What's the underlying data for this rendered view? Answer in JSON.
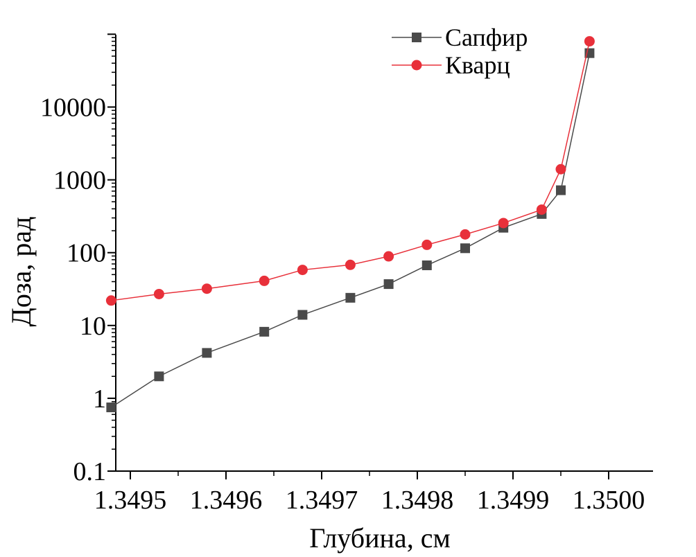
{
  "chart_data": {
    "type": "line",
    "xlabel": "Глубина, см",
    "ylabel": "Доза, рад",
    "yscale": "log",
    "xlim": [
      1.34948,
      1.35003
    ],
    "ylim": [
      0.1,
      100000
    ],
    "x_ticks": [
      "1.3495",
      "1.3496",
      "1.3497",
      "1.3498",
      "1.3499",
      "1.3500"
    ],
    "y_ticks": [
      "0.1",
      "1",
      "10",
      "100",
      "1000",
      "10000"
    ],
    "legend_position": "top-right",
    "series": [
      {
        "name": "Сапфир",
        "color": "#4a4a4a",
        "marker": "square",
        "points": [
          [
            1.34948,
            0.75
          ],
          [
            1.34953,
            2
          ],
          [
            1.34958,
            4.2
          ],
          [
            1.34964,
            8.2
          ],
          [
            1.34968,
            14
          ],
          [
            1.34973,
            24
          ],
          [
            1.34977,
            37
          ],
          [
            1.34981,
            67
          ],
          [
            1.34985,
            115
          ],
          [
            1.34989,
            220
          ],
          [
            1.34993,
            340
          ],
          [
            1.34995,
            720
          ],
          [
            1.34998,
            55000
          ]
        ]
      },
      {
        "name": "Кварц",
        "color": "#e8303a",
        "marker": "circle",
        "points": [
          [
            1.34948,
            22
          ],
          [
            1.34953,
            27
          ],
          [
            1.34958,
            32
          ],
          [
            1.34964,
            41
          ],
          [
            1.34968,
            58
          ],
          [
            1.34973,
            68
          ],
          [
            1.34977,
            89
          ],
          [
            1.34981,
            128
          ],
          [
            1.34985,
            178
          ],
          [
            1.34989,
            255
          ],
          [
            1.34993,
            390
          ],
          [
            1.34995,
            1400
          ],
          [
            1.34998,
            80000
          ]
        ]
      }
    ]
  }
}
